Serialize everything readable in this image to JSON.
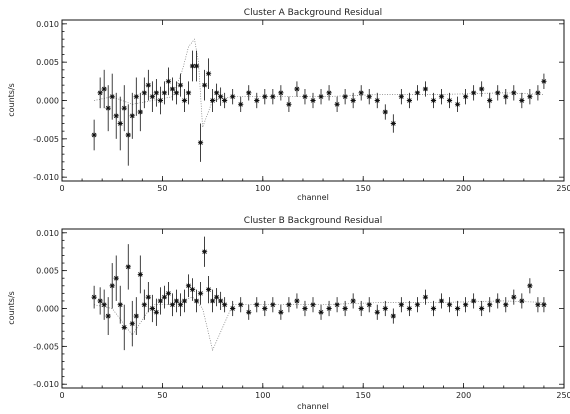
{
  "chart_data": [
    {
      "type": "scatter",
      "title": "Cluster A Background Residual",
      "xlabel": "channel",
      "ylabel": "counts/s",
      "xlim": [
        0,
        250
      ],
      "ylim": [
        -0.0105,
        0.0105
      ],
      "xticks": [
        "0",
        "50",
        "100",
        "150",
        "200",
        "250"
      ],
      "yticks": [
        "0.010",
        "0.005",
        "0.000",
        "-0.005",
        "-0.010"
      ],
      "ytick_values": [
        0.01,
        0.005,
        0.0,
        -0.005,
        -0.01
      ],
      "grid": false,
      "series": [
        {
          "marker": "asterisk-with-error-bars",
          "x": [
            16,
            19,
            21,
            23,
            25,
            27,
            29,
            31,
            33,
            35,
            37,
            39,
            41,
            43,
            45,
            47,
            49,
            51,
            53,
            55,
            57,
            59,
            61,
            63,
            65,
            67,
            69,
            71,
            73,
            75,
            77,
            79,
            81,
            85,
            89,
            93,
            97,
            101,
            105,
            109,
            113,
            117,
            121,
            125,
            129,
            133,
            137,
            141,
            145,
            149,
            153,
            157,
            161,
            165,
            169,
            173,
            177,
            181,
            185,
            189,
            193,
            197,
            201,
            205,
            209,
            213,
            217,
            221,
            225,
            229,
            233,
            237,
            240
          ],
          "y": [
            -0.0045,
            0.001,
            0.0015,
            -0.001,
            0.0005,
            -0.002,
            -0.003,
            -0.001,
            -0.0045,
            -0.002,
            0.0005,
            -0.0015,
            0.001,
            0.002,
            0.0005,
            0.001,
            0.0,
            0.001,
            0.0025,
            0.0015,
            0.001,
            0.002,
            0.0,
            0.001,
            0.0045,
            0.0045,
            -0.0055,
            0.002,
            0.0035,
            0.0,
            0.001,
            0.0005,
            0.0,
            0.0005,
            -0.0005,
            0.001,
            0.0,
            0.0005,
            0.0005,
            0.001,
            -0.0005,
            0.0015,
            0.0005,
            0.0,
            0.0005,
            0.001,
            -0.0005,
            0.0005,
            0.0,
            0.001,
            0.0005,
            0.0,
            -0.0015,
            -0.003,
            0.0005,
            0.0,
            0.001,
            0.0015,
            0.0,
            0.0005,
            0.0,
            -0.0005,
            0.0005,
            0.001,
            0.0015,
            0.0,
            0.001,
            0.0005,
            0.001,
            0.0,
            0.0005,
            0.001,
            0.0025
          ],
          "yerr": [
            0.002,
            0.002,
            0.0025,
            0.003,
            0.003,
            0.003,
            0.0035,
            0.003,
            0.004,
            0.003,
            0.0025,
            0.0025,
            0.002,
            0.002,
            0.002,
            0.0018,
            0.0018,
            0.0015,
            0.0018,
            0.0015,
            0.0015,
            0.0015,
            0.0015,
            0.0015,
            0.002,
            0.002,
            0.0025,
            0.002,
            0.002,
            0.0015,
            0.0012,
            0.0012,
            0.001,
            0.001,
            0.001,
            0.001,
            0.001,
            0.001,
            0.001,
            0.001,
            0.001,
            0.001,
            0.001,
            0.001,
            0.001,
            0.001,
            0.001,
            0.001,
            0.001,
            0.001,
            0.001,
            0.001,
            0.001,
            0.0012,
            0.001,
            0.001,
            0.001,
            0.001,
            0.001,
            0.001,
            0.001,
            0.001,
            0.001,
            0.001,
            0.001,
            0.001,
            0.001,
            0.001,
            0.001,
            0.001,
            0.001,
            0.001,
            0.001
          ]
        },
        {
          "marker": "dotted-line",
          "x": [
            16,
            25,
            35,
            45,
            55,
            60,
            63,
            66,
            68,
            70,
            75,
            85,
            100,
            130,
            160,
            190,
            220,
            240
          ],
          "y": [
            0.0,
            0.0005,
            -0.0005,
            0.0,
            0.0005,
            0.004,
            0.007,
            0.008,
            0.005,
            -0.0035,
            0.0,
            0.0005,
            0.0005,
            0.0005,
            0.0008,
            0.0008,
            0.001,
            0.0008
          ]
        }
      ]
    },
    {
      "type": "scatter",
      "title": "Cluster B Background Residual",
      "xlabel": "channel",
      "ylabel": "counts/s",
      "xlim": [
        0,
        250
      ],
      "ylim": [
        -0.0105,
        0.0105
      ],
      "xticks": [
        "0",
        "50",
        "100",
        "150",
        "200",
        "250"
      ],
      "yticks": [
        "0.010",
        "0.005",
        "0.000",
        "-0.005",
        "-0.010"
      ],
      "ytick_values": [
        0.01,
        0.005,
        0.0,
        -0.005,
        -0.01
      ],
      "grid": false,
      "series": [
        {
          "marker": "asterisk-with-error-bars",
          "x": [
            16,
            19,
            21,
            23,
            25,
            27,
            29,
            31,
            33,
            35,
            37,
            39,
            41,
            43,
            45,
            47,
            49,
            51,
            53,
            55,
            57,
            59,
            61,
            63,
            65,
            67,
            69,
            71,
            73,
            75,
            77,
            79,
            81,
            85,
            89,
            93,
            97,
            101,
            105,
            109,
            113,
            117,
            121,
            125,
            129,
            133,
            137,
            141,
            145,
            149,
            153,
            157,
            161,
            165,
            169,
            173,
            177,
            181,
            185,
            189,
            193,
            197,
            201,
            205,
            209,
            213,
            217,
            221,
            225,
            229,
            233,
            237,
            240
          ],
          "y": [
            0.0015,
            0.001,
            0.0005,
            -0.001,
            0.003,
            0.004,
            0.0005,
            -0.0025,
            0.0055,
            -0.002,
            -0.001,
            0.0045,
            0.0005,
            0.0015,
            0.0,
            -0.0005,
            0.001,
            0.0015,
            0.002,
            0.0005,
            0.001,
            0.0005,
            0.001,
            0.003,
            0.0025,
            0.001,
            0.002,
            0.0075,
            0.0025,
            0.001,
            0.0015,
            0.001,
            0.0005,
            0.0,
            0.0005,
            -0.0005,
            0.0005,
            0.0,
            0.0005,
            -0.0005,
            0.0005,
            0.001,
            0.0,
            0.0005,
            -0.0005,
            0.0,
            0.0005,
            0.0,
            0.001,
            0.0,
            0.0005,
            -0.0005,
            0.0,
            -0.001,
            0.0005,
            0.0,
            0.0005,
            0.0015,
            0.0,
            0.001,
            0.0005,
            0.0,
            0.0005,
            0.001,
            0.0,
            0.0005,
            0.001,
            0.0005,
            0.0015,
            0.001,
            0.003,
            0.0005,
            0.0005
          ],
          "yerr": [
            0.0015,
            0.0018,
            0.002,
            0.0025,
            0.003,
            0.003,
            0.0025,
            0.003,
            0.003,
            0.003,
            0.0025,
            0.0025,
            0.002,
            0.002,
            0.0018,
            0.0018,
            0.0018,
            0.0015,
            0.0015,
            0.0015,
            0.0015,
            0.0015,
            0.0015,
            0.0015,
            0.0015,
            0.0015,
            0.0015,
            0.002,
            0.0018,
            0.0015,
            0.0012,
            0.0012,
            0.001,
            0.001,
            0.001,
            0.001,
            0.001,
            0.001,
            0.001,
            0.001,
            0.001,
            0.001,
            0.001,
            0.001,
            0.001,
            0.001,
            0.001,
            0.001,
            0.001,
            0.001,
            0.001,
            0.001,
            0.001,
            0.001,
            0.001,
            0.001,
            0.001,
            0.001,
            0.001,
            0.001,
            0.001,
            0.001,
            0.001,
            0.001,
            0.001,
            0.001,
            0.001,
            0.001,
            0.001,
            0.001,
            0.001,
            0.001,
            0.001
          ]
        },
        {
          "marker": "dotted-line",
          "x": [
            16,
            25,
            35,
            45,
            55,
            65,
            70,
            75,
            85,
            100,
            130,
            160,
            190,
            220,
            240
          ],
          "y": [
            0.0005,
            0.0,
            -0.0035,
            0.0005,
            0.0005,
            0.0015,
            0.0,
            -0.0055,
            0.0005,
            0.0005,
            0.0005,
            0.0008,
            0.0008,
            0.001,
            0.0008
          ]
        }
      ]
    }
  ]
}
